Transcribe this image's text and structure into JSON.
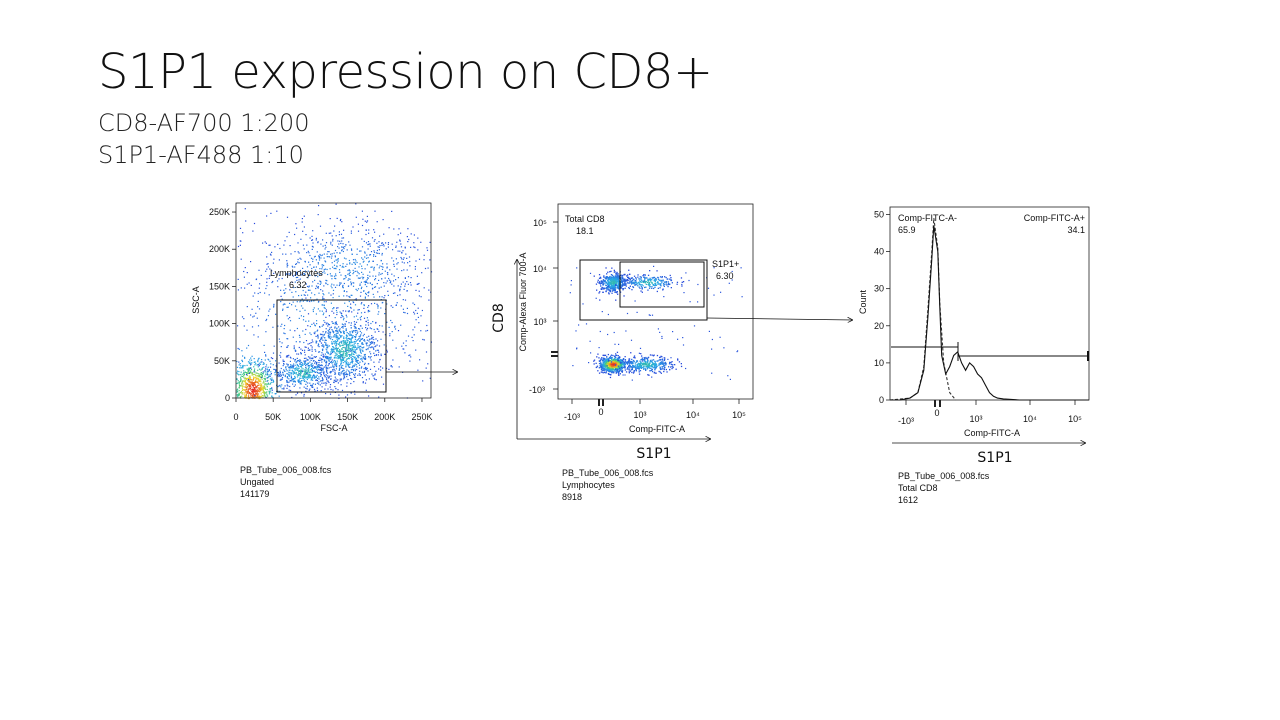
{
  "slide": {
    "title": "S1P1 expression on CD8+",
    "subtitle_lines": [
      "CD8-AF700 1:200",
      "S1P1-AF488 1:10"
    ]
  },
  "chart_data": [
    {
      "type": "scatter",
      "title": "",
      "xlabel": "FSC-A",
      "ylabel": "SSC-A",
      "xlim": [
        0,
        262144
      ],
      "ylim": [
        0,
        262144
      ],
      "x_ticks": [
        0,
        50000,
        100000,
        150000,
        200000,
        250000
      ],
      "x_tick_labels": [
        "0",
        "50K",
        "100K",
        "150K",
        "200K",
        "250K"
      ],
      "y_ticks": [
        0,
        50000,
        100000,
        150000,
        200000,
        250000
      ],
      "y_tick_labels": [
        "0",
        "50K",
        "100K",
        "150K",
        "200K",
        "250K"
      ],
      "gates": [
        {
          "name": "Lymphocytes",
          "value": "6.32",
          "x_range": [
            58000,
            205000
          ],
          "y_range": [
            3000,
            127000
          ]
        }
      ],
      "density_clusters": [
        {
          "x": 22000,
          "y": 12000,
          "sx": 15000,
          "sy": 20000,
          "n": 900
        },
        {
          "x": 90000,
          "y": 35000,
          "sx": 20000,
          "sy": 12000,
          "n": 500
        },
        {
          "x": 145000,
          "y": 65000,
          "sx": 22000,
          "sy": 22000,
          "n": 900
        },
        {
          "x": 150000,
          "y": 178000,
          "sx": 60000,
          "sy": 25000,
          "n": 500
        },
        {
          "x": 130000,
          "y": 120000,
          "sx": 80000,
          "sy": 70000,
          "n": 900
        }
      ],
      "file": "PB_Tube_006_008.fcs",
      "population": "Ungated",
      "count": "141179"
    },
    {
      "type": "scatter",
      "title": "",
      "xlabel": "Comp-FITC-A",
      "ylabel": "Comp-Alexa Fluor 700-A",
      "axis_caption_x": "S1P1",
      "axis_caption_y": "CD8",
      "scale": "biexponential",
      "x_tick_labels": [
        "-10³",
        "0",
        "10³",
        "10⁴",
        "10⁵"
      ],
      "y_tick_labels": [
        "-10³",
        "0",
        "10³",
        "10⁴",
        "10⁵"
      ],
      "gates": [
        {
          "name": "Total CD8",
          "value": "18.1"
        },
        {
          "name": "S1P1+",
          "value": "6.30"
        }
      ],
      "density_clusters": [
        {
          "fx": 0.28,
          "fy": 0.4,
          "sx": 0.035,
          "sy": 0.025,
          "n": 450
        },
        {
          "fx": 0.46,
          "fy": 0.4,
          "sx": 0.07,
          "sy": 0.02,
          "n": 220
        },
        {
          "fx": 0.28,
          "fy": 0.82,
          "sx": 0.035,
          "sy": 0.02,
          "n": 700
        },
        {
          "fx": 0.45,
          "fy": 0.82,
          "sx": 0.07,
          "sy": 0.02,
          "n": 350
        }
      ],
      "file": "PB_Tube_006_008.fcs",
      "population": "Lymphocytes",
      "count": "8918"
    },
    {
      "type": "line",
      "title": "",
      "xlabel": "Comp-FITC-A",
      "ylabel": "Count",
      "axis_caption_x": "S1P1",
      "ylim": [
        0,
        52
      ],
      "y_ticks": [
        0,
        10,
        20,
        30,
        40,
        50
      ],
      "y_tick_labels": [
        "0",
        "10",
        "20",
        "30",
        "40",
        "50"
      ],
      "x_tick_labels": [
        "-10³",
        "0",
        "10³",
        "10⁴",
        "10⁵"
      ],
      "gates": [
        {
          "name": "Comp-FITC-A-",
          "value": "65.9"
        },
        {
          "name": "Comp-FITC-A+",
          "value": "34.1"
        }
      ],
      "series": [
        {
          "style": "solid",
          "x": [
            0.0,
            0.05,
            0.1,
            0.14,
            0.17,
            0.19,
            0.21,
            0.22,
            0.24,
            0.25,
            0.26,
            0.28,
            0.3,
            0.32,
            0.34,
            0.36,
            0.38,
            0.4,
            0.42,
            0.44,
            0.46,
            0.48,
            0.5,
            0.52,
            0.54,
            0.57,
            0.6,
            0.65,
            1.0
          ],
          "y": [
            0,
            0,
            0.5,
            2,
            8,
            22,
            38,
            47,
            40,
            25,
            12,
            7,
            9,
            12,
            13,
            10,
            8,
            10,
            9,
            7,
            6,
            4,
            2,
            1,
            0.5,
            0.3,
            0.2,
            0,
            0
          ]
        },
        {
          "style": "dashed",
          "x": [
            0.0,
            0.1,
            0.14,
            0.17,
            0.19,
            0.21,
            0.22,
            0.24,
            0.25,
            0.27,
            0.3,
            0.33
          ],
          "y": [
            0,
            0.5,
            2,
            9,
            24,
            40,
            49,
            41,
            26,
            10,
            2,
            0
          ]
        }
      ],
      "file": "PB_Tube_006_008.fcs",
      "population": "Total CD8",
      "count": "1612"
    }
  ]
}
